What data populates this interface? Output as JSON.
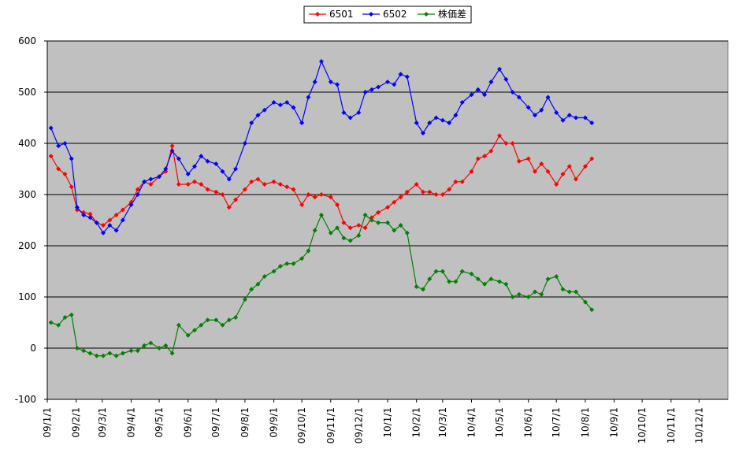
{
  "chart_data": {
    "type": "line",
    "x": [
      "09/1/5",
      "09/1/13",
      "09/1/20",
      "09/1/27",
      "09/2/2",
      "09/2/9",
      "09/2/16",
      "09/2/23",
      "09/3/2",
      "09/3/9",
      "09/3/16",
      "09/3/23",
      "09/4/1",
      "09/4/8",
      "09/4/15",
      "09/4/22",
      "09/5/1",
      "09/5/8",
      "09/5/15",
      "09/5/22",
      "09/6/1",
      "09/6/8",
      "09/6/15",
      "09/6/22",
      "09/7/1",
      "09/7/8",
      "09/7/15",
      "09/7/22",
      "09/8/1",
      "09/8/8",
      "09/8/15",
      "09/8/22",
      "09/9/1",
      "09/9/8",
      "09/9/15",
      "09/9/22",
      "09/10/1",
      "09/10/8",
      "09/10/15",
      "09/10/22",
      "09/11/1",
      "09/11/8",
      "09/11/15",
      "09/11/22",
      "09/12/1",
      "09/12/8",
      "09/12/15",
      "09/12/22",
      "10/1/1",
      "10/1/8",
      "10/1/15",
      "10/1/22",
      "10/2/1",
      "10/2/8",
      "10/2/15",
      "10/2/22",
      "10/3/1",
      "10/3/8",
      "10/3/15",
      "10/3/22",
      "10/4/1",
      "10/4/8",
      "10/4/15",
      "10/4/22",
      "10/5/1",
      "10/5/8",
      "10/5/15",
      "10/5/22",
      "10/6/1",
      "10/6/8",
      "10/6/15",
      "10/6/22",
      "10/7/1",
      "10/7/8",
      "10/7/15",
      "10/7/22",
      "10/8/1",
      "10/8/8"
    ],
    "series": [
      {
        "name": "6501",
        "color": "#ff0000",
        "values": [
          375,
          350,
          340,
          315,
          270,
          265,
          262,
          245,
          240,
          250,
          260,
          270,
          285,
          310,
          325,
          320,
          335,
          345,
          395,
          320,
          320,
          325,
          320,
          310,
          305,
          300,
          275,
          290,
          310,
          325,
          330,
          320,
          325,
          320,
          315,
          310,
          280,
          300,
          295,
          300,
          295,
          280,
          245,
          235,
          240,
          235,
          255,
          265,
          275,
          285,
          295,
          305,
          320,
          305,
          305,
          300,
          300,
          310,
          325,
          325,
          345,
          370,
          375,
          385,
          415,
          400,
          400,
          365,
          370,
          345,
          360,
          345,
          320,
          340,
          355,
          330,
          355,
          370
        ]
      },
      {
        "name": "6502",
        "color": "#0000ff",
        "values": [
          430,
          395,
          400,
          370,
          275,
          260,
          255,
          245,
          225,
          240,
          230,
          250,
          280,
          300,
          325,
          330,
          335,
          350,
          385,
          370,
          340,
          355,
          375,
          365,
          360,
          345,
          330,
          350,
          400,
          440,
          455,
          465,
          480,
          475,
          480,
          470,
          440,
          490,
          520,
          560,
          520,
          515,
          460,
          450,
          460,
          500,
          505,
          510,
          520,
          515,
          535,
          530,
          440,
          420,
          440,
          450,
          445,
          440,
          455,
          480,
          495,
          505,
          495,
          520,
          545,
          525,
          500,
          490,
          470,
          455,
          465,
          490,
          460,
          445,
          455,
          450,
          450,
          440
        ]
      },
      {
        "name": "株価差",
        "color": "#008000",
        "values": [
          50,
          45,
          60,
          65,
          0,
          -5,
          -10,
          -15,
          -15,
          -10,
          -15,
          -10,
          -5,
          -5,
          5,
          10,
          0,
          5,
          -10,
          45,
          25,
          35,
          45,
          55,
          55,
          45,
          55,
          60,
          95,
          115,
          125,
          140,
          150,
          160,
          165,
          165,
          175,
          190,
          230,
          260,
          225,
          235,
          215,
          210,
          220,
          260,
          250,
          245,
          245,
          230,
          240,
          225,
          120,
          115,
          135,
          150,
          150,
          130,
          130,
          150,
          145,
          135,
          125,
          135,
          130,
          125,
          100,
          105,
          100,
          110,
          105,
          135,
          140,
          115,
          110,
          110,
          90,
          75
        ]
      }
    ],
    "xlim": [
      "09/1/1",
      "11/1/1"
    ],
    "xticks": [
      "09/1/1",
      "09/2/1",
      "09/3/1",
      "09/4/1",
      "09/5/1",
      "09/6/1",
      "09/7/1",
      "09/8/1",
      "09/9/1",
      "09/10/1",
      "09/11/1",
      "09/12/1",
      "10/1/1",
      "10/2/1",
      "10/3/1",
      "10/4/1",
      "10/5/1",
      "10/6/1",
      "10/7/1",
      "10/8/1",
      "10/9/1",
      "10/10/1",
      "10/11/1",
      "10/12/1"
    ],
    "ylim": [
      -100,
      600
    ],
    "yticks": [
      -100,
      0,
      100,
      200,
      300,
      400,
      500,
      600
    ],
    "grid": true,
    "legend": "top"
  }
}
